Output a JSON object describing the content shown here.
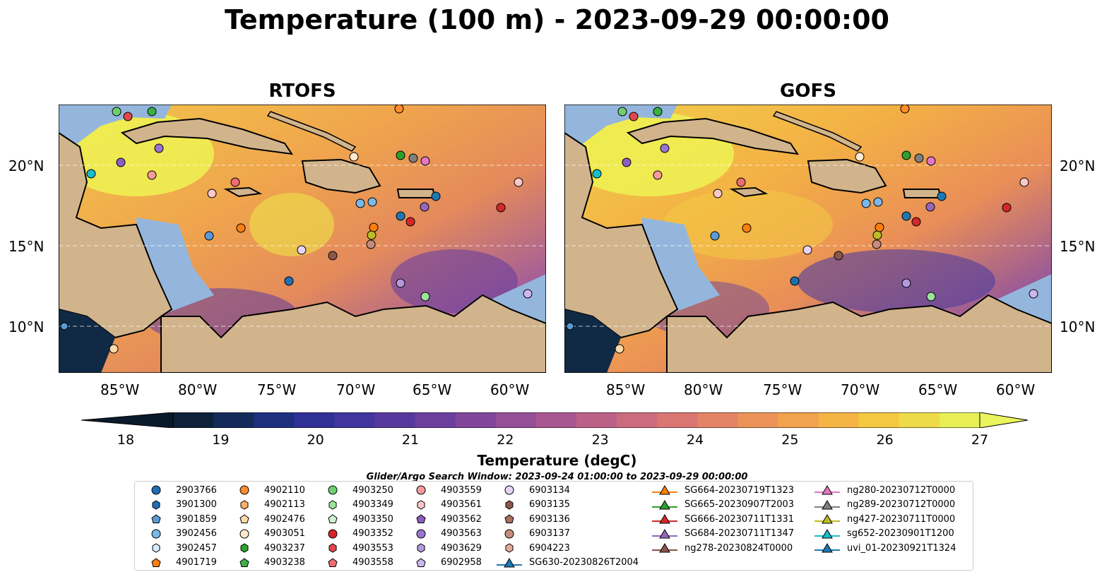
{
  "title": "Temperature (100 m) - 2023-09-29 00:00:00",
  "panels": [
    {
      "title": "RTOFS"
    },
    {
      "title": "GOFS"
    }
  ],
  "lon_labels": [
    "85°W",
    "80°W",
    "75°W",
    "70°W",
    "65°W",
    "60°W"
  ],
  "lat_labels": [
    "20°N",
    "15°N",
    "10°N"
  ],
  "colorbar": {
    "label": "Temperature (degC)",
    "ticks": [
      "18",
      "19",
      "20",
      "21",
      "22",
      "23",
      "24",
      "25",
      "26",
      "27"
    ],
    "min": 18,
    "max": 27,
    "colors": [
      "#0d2238",
      "#132a5a",
      "#1f2f80",
      "#2f3196",
      "#42359e",
      "#57399e",
      "#6b3f9c",
      "#7f469a",
      "#944f96",
      "#a85890",
      "#bb6188",
      "#cb6b7d",
      "#d97672",
      "#e48467",
      "#ec935a",
      "#f2a34d",
      "#f5b545",
      "#f5c841",
      "#eedb49",
      "#e7ef55"
    ]
  },
  "legend_subtitle": "Glider/Argo Search Window: 2023-09-24 01:00:00 to 2023-09-29 00:00:00",
  "legend": [
    {
      "label": "2903766",
      "marker": "circle",
      "color": "#1f6fb4"
    },
    {
      "label": "3901300",
      "marker": "hexagon",
      "color": "#1f6fb4"
    },
    {
      "label": "3901859",
      "marker": "pentagon",
      "color": "#5b9bd5"
    },
    {
      "label": "3902456",
      "marker": "circle",
      "color": "#7ab8e8"
    },
    {
      "label": "3902457",
      "marker": "hexagon",
      "color": "#d8ecfb"
    },
    {
      "label": "4901719",
      "marker": "pentagon",
      "color": "#ff7f0e"
    },
    {
      "label": "4902110",
      "marker": "circle",
      "color": "#ff8c2a"
    },
    {
      "label": "4902113",
      "marker": "hexagon",
      "color": "#ffb060"
    },
    {
      "label": "4902476",
      "marker": "pentagon",
      "color": "#ffd9a8"
    },
    {
      "label": "4903051",
      "marker": "circle",
      "color": "#ffe9cf"
    },
    {
      "label": "4903237",
      "marker": "hexagon",
      "color": "#2ca02c"
    },
    {
      "label": "4903238",
      "marker": "pentagon",
      "color": "#3cb043"
    },
    {
      "label": "4903250",
      "marker": "circle",
      "color": "#6fcf6f"
    },
    {
      "label": "4903349",
      "marker": "hexagon",
      "color": "#9be39b"
    },
    {
      "label": "4903350",
      "marker": "pentagon",
      "color": "#cdf3cd"
    },
    {
      "label": "4903352",
      "marker": "circle",
      "color": "#d62728"
    },
    {
      "label": "4903553",
      "marker": "hexagon",
      "color": "#e0474c"
    },
    {
      "label": "4903558",
      "marker": "pentagon",
      "color": "#ee6b70"
    },
    {
      "label": "4903559",
      "marker": "circle",
      "color": "#f59a9c"
    },
    {
      "label": "4903561",
      "marker": "hexagon",
      "color": "#fbc7c8"
    },
    {
      "label": "4903562",
      "marker": "pentagon",
      "color": "#8a5fbf"
    },
    {
      "label": "4903563",
      "marker": "circle",
      "color": "#9b72cf"
    },
    {
      "label": "4903629",
      "marker": "hexagon",
      "color": "#b399dd"
    },
    {
      "label": "6902958",
      "marker": "pentagon",
      "color": "#cdb7ef"
    },
    {
      "label": "6903134",
      "marker": "circle",
      "color": "#e9d2f7"
    },
    {
      "label": "6903135",
      "marker": "hexagon",
      "color": "#8c564b"
    },
    {
      "label": "6903136",
      "marker": "pentagon",
      "color": "#a8705f"
    },
    {
      "label": "6903137",
      "marker": "circle",
      "color": "#c48c7d"
    },
    {
      "label": "6904223",
      "marker": "hexagon",
      "color": "#e2ab98"
    },
    {
      "label": "SG630-20230826T2004",
      "marker": "triangle-line",
      "color": "#1f77b4"
    },
    {
      "label": "SG664-20230719T1323",
      "marker": "triangle-line",
      "color": "#ff7f0e"
    },
    {
      "label": "SG665-20230907T2003",
      "marker": "triangle-line",
      "color": "#2ca02c"
    },
    {
      "label": "SG666-20230711T1331",
      "marker": "triangle-line",
      "color": "#d62728"
    },
    {
      "label": "SG684-20230711T1347",
      "marker": "triangle-line",
      "color": "#9467bd"
    },
    {
      "label": "ng278-20230824T0000",
      "marker": "triangle-line",
      "color": "#8c564b"
    },
    {
      "label": "ng280-20230712T0000",
      "marker": "triangle-line",
      "color": "#e377c2"
    },
    {
      "label": "ng289-20230712T0000",
      "marker": "triangle-line",
      "color": "#7f7f7f"
    },
    {
      "label": "ng427-20230711T0000",
      "marker": "triangle-line",
      "color": "#bcbd22"
    },
    {
      "label": "sg652-20230901T1200",
      "marker": "triangle-line",
      "color": "#17becf"
    },
    {
      "label": "uvi_01-20230921T1324",
      "marker": "triangle-line",
      "color": "#1f77b4"
    }
  ],
  "colors": {
    "land": "#d2b48c",
    "shelf": "#94b6dd",
    "coast": "#000000",
    "deep_ocean": "#102a45"
  }
}
